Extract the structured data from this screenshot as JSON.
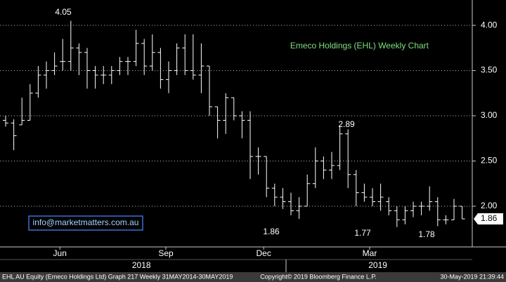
{
  "chart_data": {
    "type": "ohlc",
    "title": "Emeco Holdings (EHL) Weekly Chart",
    "categories": [
      null,
      null,
      null,
      null,
      null,
      null,
      null,
      "Jun",
      null,
      null,
      null,
      null,
      null,
      null,
      null,
      null,
      null,
      null,
      null,
      null,
      "Sep",
      null,
      null,
      null,
      null,
      null,
      null,
      null,
      null,
      null,
      null,
      null,
      "Dec",
      null,
      null,
      null,
      null,
      null,
      null,
      null,
      null,
      null,
      null,
      null,
      null,
      "Mar",
      null,
      null,
      null,
      null,
      null,
      null,
      null,
      null,
      null,
      null,
      null
    ],
    "year_categories": [
      null,
      null,
      null,
      null,
      null,
      null,
      null,
      null,
      null,
      null,
      null,
      null,
      null,
      null,
      null,
      null,
      null,
      "2018",
      null,
      null,
      null,
      null,
      null,
      null,
      null,
      null,
      null,
      null,
      null,
      null,
      null,
      null,
      null,
      null,
      null,
      null,
      null,
      null,
      null,
      null,
      null,
      null,
      null,
      null,
      null,
      null,
      "2019",
      null,
      null,
      null,
      null,
      null,
      null,
      null,
      null,
      null,
      null
    ],
    "open": [
      2.95,
      2.92,
      2.9,
      2.95,
      3.25,
      3.45,
      3.5,
      3.6,
      3.6,
      3.75,
      3.7,
      3.5,
      3.45,
      3.45,
      3.5,
      3.6,
      3.6,
      3.8,
      3.55,
      3.7,
      3.4,
      3.5,
      3.75,
      3.5,
      3.45,
      3.55,
      3.1,
      2.95,
      3.2,
      3.0,
      2.95,
      2.55,
      2.55,
      2.2,
      2.1,
      2.05,
      1.95,
      2.0,
      2.25,
      2.5,
      2.4,
      2.45,
      2.8,
      2.35,
      2.15,
      2.1,
      2.05,
      2.05,
      1.95,
      1.85,
      1.95,
      2.0,
      2.0,
      2.05,
      1.85,
      1.85,
      2.0
    ],
    "high": [
      3.0,
      2.96,
      3.2,
      3.35,
      3.55,
      3.6,
      3.7,
      3.85,
      4.05,
      3.8,
      3.75,
      3.55,
      3.55,
      3.55,
      3.65,
      3.65,
      3.95,
      3.85,
      3.9,
      3.75,
      3.6,
      3.8,
      3.9,
      3.9,
      3.8,
      3.55,
      3.1,
      3.25,
      3.2,
      3.05,
      3.05,
      2.65,
      2.55,
      2.25,
      2.2,
      2.15,
      2.1,
      2.35,
      2.65,
      2.55,
      2.6,
      2.89,
      2.85,
      2.4,
      2.25,
      2.2,
      2.25,
      2.1,
      2.0,
      2.0,
      2.05,
      2.05,
      2.22,
      2.1,
      1.9,
      2.08,
      2.0
    ],
    "low": [
      2.88,
      2.62,
      2.9,
      2.95,
      3.2,
      3.3,
      3.45,
      3.5,
      3.5,
      3.45,
      3.3,
      3.3,
      3.35,
      3.35,
      3.45,
      3.45,
      3.55,
      3.45,
      3.5,
      3.3,
      3.25,
      3.45,
      3.45,
      3.4,
      3.25,
      3.0,
      2.75,
      2.8,
      2.95,
      2.75,
      2.3,
      2.35,
      2.1,
      2.0,
      1.97,
      1.9,
      1.86,
      2.0,
      2.2,
      2.3,
      2.3,
      2.4,
      2.2,
      2.0,
      2.05,
      2.0,
      1.95,
      1.9,
      1.77,
      1.8,
      1.88,
      1.9,
      1.95,
      1.78,
      1.8,
      1.85,
      1.86
    ],
    "close": [
      2.92,
      2.78,
      2.95,
      3.25,
      3.45,
      3.5,
      3.55,
      3.6,
      3.75,
      3.7,
      3.5,
      3.45,
      3.45,
      3.5,
      3.6,
      3.6,
      3.8,
      3.55,
      3.7,
      3.4,
      3.5,
      3.75,
      3.5,
      3.45,
      3.55,
      3.1,
      2.95,
      3.2,
      3.0,
      2.95,
      2.55,
      2.55,
      2.2,
      2.1,
      2.05,
      1.95,
      2.0,
      2.25,
      2.5,
      2.4,
      2.45,
      2.8,
      2.35,
      2.15,
      2.1,
      2.05,
      2.1,
      1.95,
      1.85,
      1.95,
      2.0,
      2.0,
      2.05,
      1.85,
      1.85,
      2.0,
      1.86
    ],
    "color": "#ffffff",
    "ylim": [
      1.55,
      4.28
    ],
    "yticks": [
      {
        "value": 2,
        "label": "2.00"
      },
      {
        "value": 2.5,
        "label": "2.50"
      },
      {
        "value": 3,
        "label": "3.00"
      },
      {
        "value": 3.5,
        "label": "3.50"
      },
      {
        "value": 4,
        "label": "4.00"
      }
    ],
    "grid": true,
    "last_price": 1.86,
    "annotations": [
      "4.05",
      "2.89",
      "1.86",
      "1.77",
      "1.78"
    ],
    "email": "info@marketmatters.com.au",
    "footer_left": "EHL AU Equity (Emeco Holdings Ltd) Graph 217  Weekly 31MAY2014-30MAY2019",
    "footer_center": "Copyright© 2019 Bloomberg Finance L.P.",
    "footer_right": "30-May-2019 21:39:44"
  }
}
